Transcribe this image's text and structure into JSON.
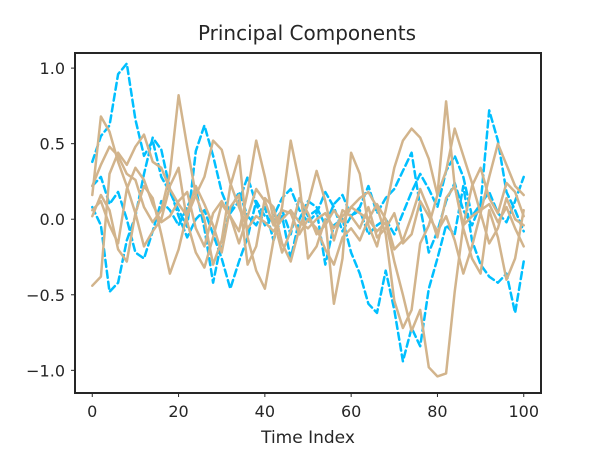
{
  "chart_data": {
    "type": "line",
    "title": "Principal Components",
    "xlabel": "Time Index",
    "ylabel": "",
    "xlim": [
      -4,
      104
    ],
    "ylim": [
      -1.15,
      1.1
    ],
    "xticks": [
      0,
      20,
      40,
      60,
      80,
      100
    ],
    "xtick_labels": [
      "0",
      "20",
      "40",
      "60",
      "80",
      "100"
    ],
    "yticks": [
      -1.0,
      -0.5,
      0.0,
      0.5,
      1.0
    ],
    "ytick_labels": [
      "−1.0",
      "−0.5",
      "0.0",
      "0.5",
      "1.0"
    ],
    "grid": false,
    "legend": "none",
    "colors": {
      "dashed": "#00bfff",
      "solid": "#d2b48c"
    },
    "x": [
      0,
      2,
      4,
      6,
      8,
      10,
      12,
      14,
      16,
      18,
      20,
      22,
      24,
      26,
      28,
      30,
      32,
      34,
      36,
      38,
      40,
      42,
      44,
      46,
      48,
      50,
      52,
      54,
      56,
      58,
      60,
      62,
      64,
      66,
      68,
      70,
      72,
      74,
      76,
      78,
      80,
      82,
      84,
      86,
      88,
      90,
      92,
      94,
      96,
      98,
      100
    ],
    "series": [
      {
        "style": "dashed",
        "values": [
          0.38,
          0.55,
          0.62,
          0.96,
          1.03,
          0.66,
          0.42,
          0.52,
          0.28,
          0.18,
          0.06,
          -0.05,
          0.45,
          0.62,
          0.42,
          0.18,
          0.04,
          0.12,
          0.28,
          0.1,
          -0.04,
          0.02,
          0.14,
          0.2,
          0.06,
          -0.02,
          0.04,
          0.18,
          0.08,
          -0.08,
          0.02,
          0.06,
          -0.1,
          -0.04,
          0.0,
          -0.1,
          0.04,
          0.18,
          0.3,
          0.2,
          0.08,
          0.32,
          0.42,
          0.28,
          0.02,
          0.1,
          0.72,
          0.52,
          0.18,
          0.06,
          -0.08
        ]
      },
      {
        "style": "dashed",
        "values": [
          0.08,
          -0.04,
          -0.48,
          -0.42,
          -0.14,
          0.02,
          0.3,
          0.54,
          0.46,
          0.2,
          0.02,
          -0.12,
          0.0,
          0.06,
          -0.1,
          -0.26,
          -0.46,
          -0.28,
          -0.12,
          0.12,
          0.02,
          -0.02,
          0.06,
          -0.1,
          0.14,
          0.02,
          0.06,
          -0.3,
          -0.04,
          0.0,
          -0.22,
          -0.36,
          -0.56,
          -0.62,
          -0.34,
          -0.6,
          -0.94,
          -0.72,
          -0.84,
          -0.46,
          -0.26,
          -0.04,
          -0.1,
          0.22,
          -0.14,
          -0.3,
          -0.38,
          -0.42,
          -0.36,
          -0.62,
          -0.28
        ]
      },
      {
        "style": "dashed",
        "values": [
          0.22,
          0.28,
          0.1,
          0.18,
          0.0,
          -0.22,
          -0.26,
          -0.08,
          0.12,
          0.06,
          -0.04,
          0.08,
          0.2,
          -0.06,
          -0.42,
          -0.14,
          0.06,
          0.18,
          0.02,
          -0.04,
          0.08,
          -0.14,
          0.02,
          -0.26,
          0.0,
          0.12,
          0.08,
          -0.04,
          0.1,
          0.16,
          0.02,
          0.08,
          0.22,
          0.04,
          0.14,
          0.2,
          0.32,
          0.44,
          0.08,
          -0.22,
          -0.08,
          0.12,
          0.24,
          0.06,
          -0.04,
          0.1,
          0.18,
          0.04,
          -0.02,
          0.12,
          0.28
        ]
      },
      {
        "style": "solid",
        "values": [
          0.22,
          0.36,
          0.48,
          0.42,
          0.3,
          0.26,
          0.08,
          -0.02,
          0.06,
          0.3,
          0.82,
          0.48,
          0.16,
          0.0,
          -0.3,
          -0.14,
          0.22,
          0.42,
          -0.12,
          -0.34,
          -0.46,
          -0.14,
          0.08,
          0.52,
          0.24,
          -0.26,
          -0.18,
          0.0,
          -0.56,
          -0.26,
          0.44,
          0.3,
          -0.04,
          -0.18,
          0.06,
          0.34,
          0.52,
          0.6,
          0.54,
          0.4,
          0.16,
          0.32,
          0.6,
          0.42,
          0.24,
          0.04,
          0.28,
          0.5,
          0.36,
          0.22,
          0.16
        ]
      },
      {
        "style": "solid",
        "values": [
          0.06,
          0.12,
          -0.04,
          -0.16,
          0.2,
          0.34,
          0.26,
          0.1,
          -0.02,
          0.02,
          0.12,
          0.18,
          -0.06,
          -0.18,
          0.04,
          0.12,
          0.02,
          -0.08,
          0.18,
          0.52,
          0.28,
          0.0,
          -0.22,
          -0.08,
          0.14,
          0.04,
          -0.1,
          -0.04,
          0.06,
          -0.02,
          0.08,
          0.14,
          0.18,
          0.08,
          -0.1,
          -0.54,
          -0.72,
          -0.6,
          -0.16,
          -0.04,
          0.16,
          0.78,
          0.22,
          -0.04,
          0.02,
          0.06,
          0.1,
          -0.02,
          0.08,
          -0.06,
          -0.18
        ]
      },
      {
        "style": "solid",
        "values": [
          -0.44,
          -0.38,
          0.3,
          0.44,
          0.36,
          0.48,
          0.56,
          0.38,
          0.34,
          0.2,
          0.1,
          0.02,
          0.16,
          0.28,
          0.52,
          0.46,
          0.24,
          0.08,
          -0.06,
          0.02,
          -0.02,
          -0.08,
          0.0,
          0.06,
          -0.02,
          -0.06,
          0.0,
          0.04,
          -0.06,
          0.02,
          0.08,
          0.04,
          0.0,
          -0.08,
          -0.02,
          -0.28,
          -0.5,
          -0.74,
          -0.6,
          -0.98,
          -1.04,
          -1.02,
          -0.48,
          -0.04,
          0.22,
          0.34,
          0.14,
          0.04,
          0.24,
          0.18,
          0.02
        ]
      },
      {
        "style": "solid",
        "values": [
          0.02,
          0.16,
          0.06,
          -0.2,
          -0.28,
          0.04,
          0.22,
          0.14,
          -0.1,
          -0.36,
          -0.2,
          0.04,
          0.22,
          0.1,
          -0.04,
          -0.22,
          0.08,
          0.16,
          -0.3,
          -0.18,
          0.14,
          0.08,
          -0.16,
          -0.28,
          -0.06,
          0.1,
          0.32,
          0.12,
          -0.14,
          0.06,
          0.02,
          -0.06,
          0.08,
          -0.12,
          -0.06,
          0.04,
          -0.16,
          -0.1,
          0.12,
          0.02,
          -0.08,
          0.02,
          -0.14,
          -0.36,
          -0.18,
          0.04,
          -0.16,
          -0.06,
          0.14,
          0.0,
          -0.04
        ]
      },
      {
        "style": "solid",
        "values": [
          0.16,
          0.68,
          0.58,
          0.38,
          0.22,
          0.04,
          -0.18,
          -0.08,
          0.0,
          0.22,
          0.34,
          -0.02,
          -0.22,
          -0.32,
          -0.12,
          0.1,
          0.02,
          -0.16,
          0.02,
          0.2,
          0.12,
          -0.04,
          0.06,
          0.04,
          -0.1,
          0.0,
          -0.06,
          -0.2,
          -0.3,
          -0.12,
          -0.06,
          -0.14,
          0.0,
          0.1,
          0.0,
          -0.2,
          -0.14,
          0.02,
          0.2,
          0.06,
          -0.12,
          0.14,
          0.22,
          -0.06,
          -0.26,
          -0.36,
          0.06,
          -0.12,
          -0.4,
          -0.26,
          0.06
        ]
      }
    ]
  }
}
